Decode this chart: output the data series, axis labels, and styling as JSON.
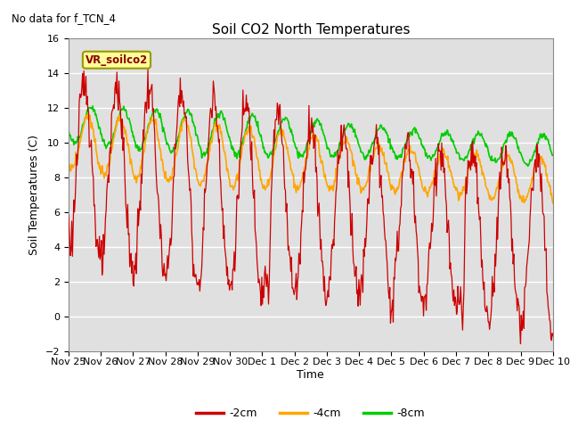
{
  "title": "Soil CO2 North Temperatures",
  "subtitle": "No data for f_TCN_4",
  "ylabel": "Soil Temperatures (C)",
  "xlabel": "Time",
  "ylim": [
    -2,
    16
  ],
  "yticks": [
    -2,
    0,
    2,
    4,
    6,
    8,
    10,
    12,
    14,
    16
  ],
  "legend_labels": [
    "-2cm",
    "-4cm",
    "-8cm"
  ],
  "legend_colors": [
    "#cc0000",
    "#ffa500",
    "#00cc00"
  ],
  "vr_label": "VR_soilco2",
  "bg_color": "#ffffff",
  "plot_bg_color": "#e0e0e0",
  "grid_color": "#ffffff",
  "xtick_labels": [
    "Nov 25",
    "Nov 26",
    "Nov 27",
    "Nov 28",
    "Nov 29",
    "Nov 30",
    "Dec 1",
    "Dec 2",
    "Dec 3",
    "Dec 4",
    "Dec 5",
    "Dec 6",
    "Dec 7",
    "Dec 8",
    "Dec 9",
    "Dec 10"
  ]
}
